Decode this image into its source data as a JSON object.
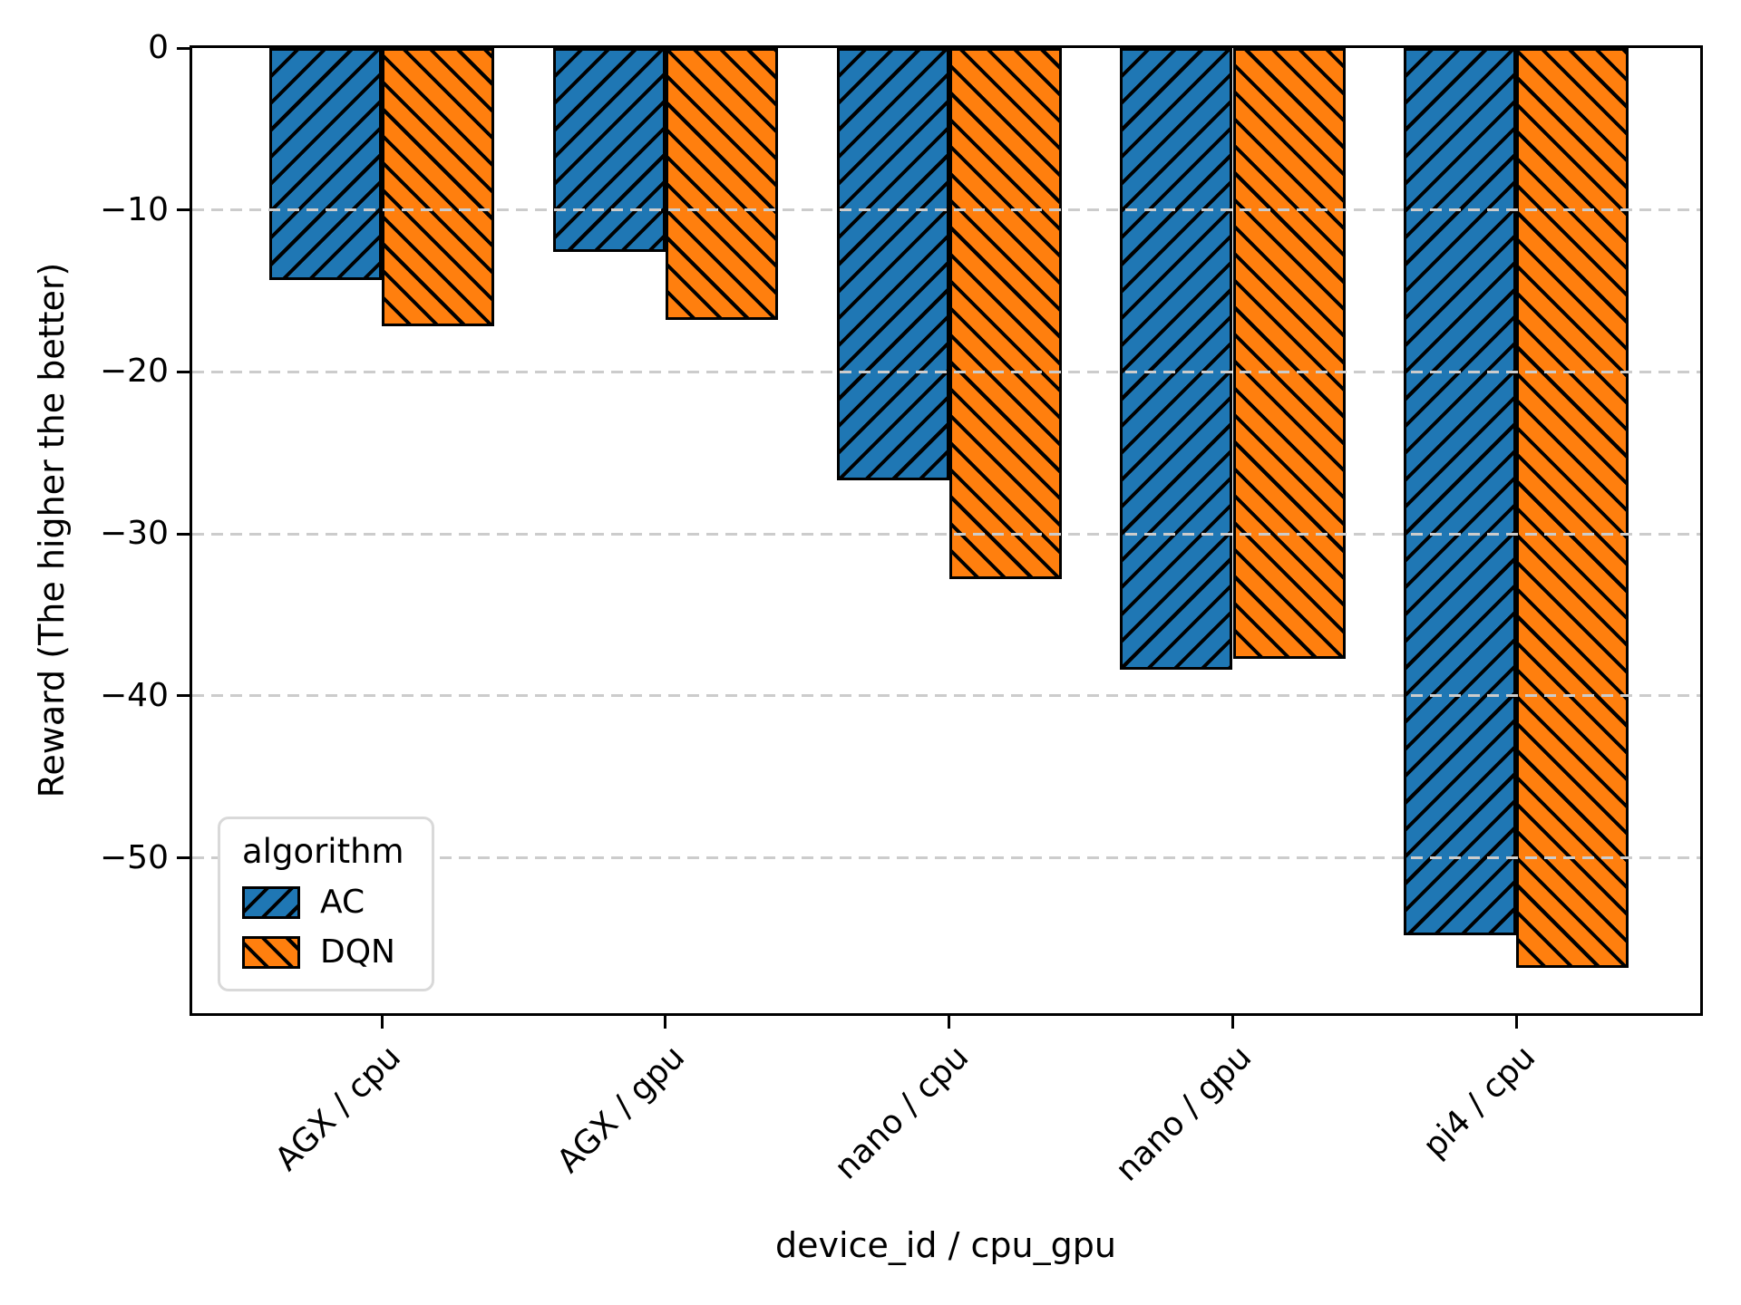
{
  "chart_data": {
    "type": "bar",
    "xlabel": "device_id / cpu_gpu",
    "ylabel": "Reward (The higher the better)",
    "categories": [
      "AGX / cpu",
      "AGX / gpu",
      "nano / cpu",
      "nano / gpu",
      "pi4 / cpu"
    ],
    "series": [
      {
        "name": "AC",
        "color": "#1f77b4",
        "hatch": "/",
        "values": [
          -14.3,
          -12.6,
          -26.7,
          -38.4,
          -54.8
        ]
      },
      {
        "name": "DQN",
        "color": "#ff7f0e",
        "hatch": "\\",
        "values": [
          -17.2,
          -16.8,
          -32.8,
          -37.7,
          -56.8
        ]
      }
    ],
    "ylim": [
      -59.6,
      0
    ],
    "yticks": {
      "values": [
        0,
        -10,
        -20,
        -30,
        -40,
        -50
      ],
      "labels": [
        "0",
        "−10",
        "−20",
        "−30",
        "−40",
        "−50"
      ]
    },
    "legend": {
      "title": "algorithm",
      "entries": [
        "AC",
        "DQN"
      ],
      "position": "lower left"
    },
    "grid": "horizontal-dashed",
    "grid_color": "#cccccc",
    "edge_color": "#000000"
  }
}
